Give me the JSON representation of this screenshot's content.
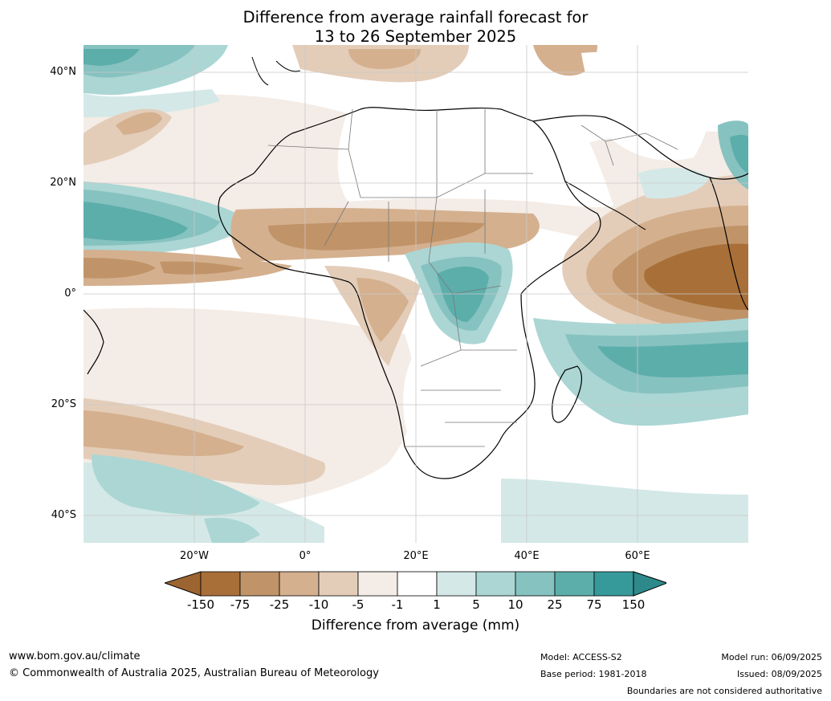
{
  "title_line1": "Difference from average rainfall forecast for",
  "title_line2": "13 to 26 September 2025",
  "lat_labels": [
    "40°N",
    "20°N",
    "0°",
    "20°S",
    "40°S"
  ],
  "lon_labels": [
    "20°W",
    "0°",
    "20°E",
    "40°E",
    "60°E"
  ],
  "colorbar": {
    "labels": [
      "-150",
      "-75",
      "-25",
      "-10",
      "-5",
      "-1",
      "1",
      "5",
      "10",
      "25",
      "75",
      "150"
    ],
    "colors": [
      "#a86f38",
      "#c09468",
      "#d4b08f",
      "#e3cdb9",
      "#f4ece6",
      "#ffffff",
      "#d4e9e7",
      "#abd6d4",
      "#86c2c0",
      "#5caeab",
      "#36999a"
    ],
    "under_color": "#9c6430",
    "over_color": "#2e8a8a",
    "title": "Difference from average (mm)"
  },
  "footer": {
    "url": "www.bom.gov.au/climate",
    "copyright": "© Commonwealth of Australia 2025, Australian Bureau of Meteorology",
    "model": "Model: ACCESS-S2",
    "base_period": "Base period: 1981-2018",
    "model_run": "Model run: 06/09/2025",
    "issued": "Issued: 08/09/2025",
    "disclaimer": "Boundaries are not considered authoritative"
  }
}
